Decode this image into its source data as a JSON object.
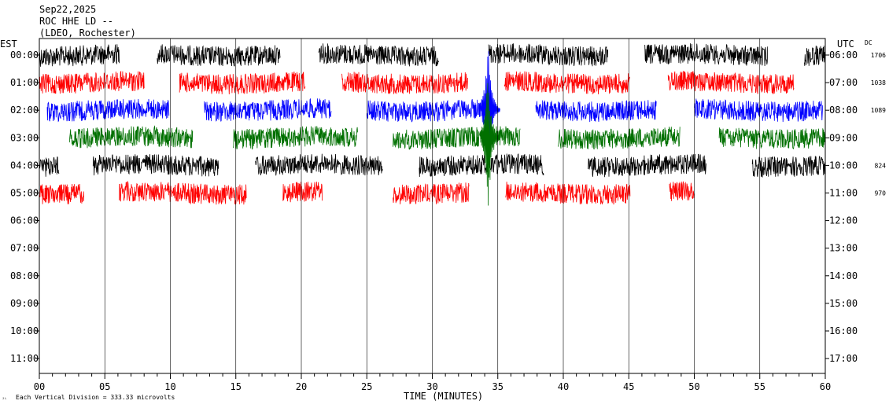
{
  "header": {
    "date": "Sep22,2025",
    "station": "ROC HHE LD --",
    "network": "(LDEO, Rochester)"
  },
  "chart_data": {
    "type": "line",
    "title": "",
    "xlabel": "TIME (MINUTES)",
    "xlim": [
      0,
      60
    ],
    "x_ticks": [
      "00",
      "05",
      "10",
      "15",
      "20",
      "25",
      "30",
      "35",
      "40",
      "45",
      "50",
      "55",
      "60"
    ],
    "left_axis_label": "EST",
    "right_axis_label": "UTC",
    "dc_label": "DC",
    "est_rows": [
      "00:00",
      "01:00",
      "02:00",
      "03:00",
      "04:00",
      "05:00",
      "06:00",
      "07:00",
      "08:00",
      "09:00",
      "10:00",
      "11:00"
    ],
    "utc_rows": [
      "06:00",
      "07:00",
      "08:00",
      "09:00",
      "10:00",
      "11:00",
      "12:00",
      "13:00",
      "14:00",
      "15:00",
      "16:00",
      "17:00"
    ],
    "dc_values": [
      "1706",
      "1038",
      "1089",
      "",
      "824",
      "970",
      "",
      "",
      "",
      "",
      "",
      ""
    ],
    "footer_note": "Each Vertical Division =  333.33 microvolts",
    "footer_mark": "ᴶᴸ",
    "trace_colors": [
      "#000000",
      "#ff0000",
      "#0000ff",
      "#007000"
    ],
    "series": [
      {
        "hour": 0,
        "color": "#000000",
        "segments": [
          [
            0.0,
            6.1
          ],
          [
            9.0,
            18.4
          ],
          [
            21.3,
            30.5
          ],
          [
            34.3,
            43.4
          ],
          [
            46.2,
            55.6
          ],
          [
            58.4,
            60.0
          ]
        ]
      },
      {
        "hour": 1,
        "color": "#ff0000",
        "segments": [
          [
            0.0,
            8.0
          ],
          [
            10.7,
            20.3
          ],
          [
            23.1,
            32.7
          ],
          [
            35.5,
            45.1
          ],
          [
            48.0,
            57.6
          ]
        ]
      },
      {
        "hour": 2,
        "color": "#0000ff",
        "segments": [
          [
            0.6,
            9.9
          ],
          [
            12.6,
            22.3
          ],
          [
            25.0,
            34.5
          ],
          [
            37.9,
            47.1
          ],
          [
            50.0,
            59.8
          ]
        ]
      },
      {
        "hour": 3,
        "color": "#007000",
        "segments": [
          [
            2.3,
            11.7
          ],
          [
            14.8,
            24.3
          ],
          [
            27.0,
            36.7
          ],
          [
            39.6,
            48.9
          ],
          [
            51.9,
            60.0
          ]
        ]
      },
      {
        "hour": 4,
        "color": "#000000",
        "segments": [
          [
            0.0,
            1.5
          ],
          [
            4.1,
            13.7
          ],
          [
            16.5,
            26.2
          ],
          [
            29.0,
            38.5
          ],
          [
            41.9,
            50.9
          ],
          [
            54.4,
            60.0
          ]
        ]
      },
      {
        "hour": 5,
        "color": "#ff0000",
        "segments": [
          [
            0.0,
            3.4
          ],
          [
            6.1,
            15.8
          ],
          [
            18.6,
            21.6
          ],
          [
            27.0,
            32.8
          ],
          [
            35.6,
            45.1
          ],
          [
            48.1,
            50.0
          ]
        ]
      }
    ],
    "events": [
      {
        "hour": 2,
        "minute": 34.0,
        "label": ""
      },
      {
        "hour": 3,
        "minute": 34.0,
        "label": ""
      }
    ]
  }
}
